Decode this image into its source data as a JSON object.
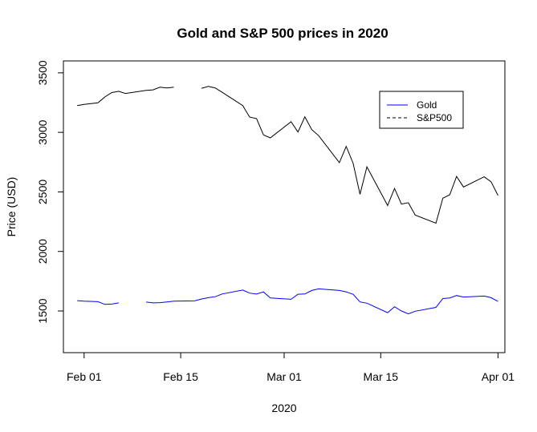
{
  "chart_data": {
    "type": "line",
    "title": "Gold and S&P 500 prices in 2020",
    "xlabel": "2020",
    "ylabel": "Price (USD)",
    "xlim": [
      "2020-01-29",
      "2020-04-02"
    ],
    "ylim": [
      1150,
      3600
    ],
    "x_ticks": [
      {
        "label": "Feb 01",
        "date": "2020-02-01"
      },
      {
        "label": "Feb 15",
        "date": "2020-02-15"
      },
      {
        "label": "Mar 01",
        "date": "2020-03-01"
      },
      {
        "label": "Mar 15",
        "date": "2020-03-15"
      },
      {
        "label": "Apr 01",
        "date": "2020-04-01"
      }
    ],
    "y_ticks": [
      1500,
      2000,
      2500,
      3000,
      3500
    ],
    "legend": {
      "position": "top-right",
      "entries": [
        {
          "name": "Gold",
          "color": "#0000ff",
          "style": "solid"
        },
        {
          "name": "S&P500",
          "color": "#000000",
          "style": "dashed"
        }
      ]
    },
    "series": [
      {
        "name": "S&P500",
        "color": "#000000",
        "points": [
          [
            "2020-01-31",
            3225
          ],
          [
            "2020-02-01",
            3235
          ],
          [
            "2020-02-03",
            3248
          ],
          [
            "2020-02-04",
            3297
          ],
          [
            "2020-02-05",
            3334
          ],
          [
            "2020-02-06",
            3345
          ],
          [
            "2020-02-07",
            3327
          ],
          [
            "2020-02-10",
            3352
          ],
          [
            "2020-02-11",
            3357
          ],
          [
            "2020-02-12",
            3379
          ],
          [
            "2020-02-13",
            3373
          ],
          [
            "2020-02-14",
            3380
          ],
          null,
          [
            "2020-02-18",
            3370
          ],
          [
            "2020-02-19",
            3386
          ],
          [
            "2020-02-20",
            3373
          ],
          [
            "2020-02-21",
            3337
          ],
          [
            "2020-02-24",
            3225
          ],
          [
            "2020-02-25",
            3128
          ],
          [
            "2020-02-26",
            3116
          ],
          [
            "2020-02-27",
            2979
          ],
          [
            "2020-02-28",
            2954
          ],
          [
            "2020-03-02",
            3090
          ],
          [
            "2020-03-03",
            3003
          ],
          [
            "2020-03-04",
            3130
          ],
          [
            "2020-03-05",
            3023
          ],
          [
            "2020-03-06",
            2972
          ],
          [
            "2020-03-09",
            2746
          ],
          [
            "2020-03-10",
            2882
          ],
          [
            "2020-03-11",
            2741
          ],
          [
            "2020-03-12",
            2480
          ],
          [
            "2020-03-13",
            2711
          ],
          [
            "2020-03-16",
            2386
          ],
          [
            "2020-03-17",
            2529
          ],
          [
            "2020-03-18",
            2398
          ],
          [
            "2020-03-19",
            2409
          ],
          [
            "2020-03-20",
            2305
          ],
          [
            "2020-03-23",
            2237
          ],
          [
            "2020-03-24",
            2447
          ],
          [
            "2020-03-25",
            2476
          ],
          [
            "2020-03-26",
            2630
          ],
          [
            "2020-03-27",
            2541
          ],
          [
            "2020-03-30",
            2627
          ],
          [
            "2020-03-31",
            2585
          ],
          [
            "2020-04-01",
            2470
          ]
        ]
      },
      {
        "name": "Gold",
        "color": "#0000ff",
        "points": [
          [
            "2020-01-31",
            1587
          ],
          [
            "2020-02-01",
            1583
          ],
          [
            "2020-02-03",
            1578
          ],
          [
            "2020-02-04",
            1555
          ],
          [
            "2020-02-05",
            1558
          ],
          [
            "2020-02-06",
            1568
          ],
          null,
          [
            "2020-02-10",
            1575
          ],
          [
            "2020-02-11",
            1568
          ],
          [
            "2020-02-12",
            1570
          ],
          [
            "2020-02-13",
            1576
          ],
          [
            "2020-02-14",
            1582
          ],
          [
            "2020-02-17",
            1585
          ],
          [
            "2020-02-18",
            1600
          ],
          [
            "2020-02-19",
            1612
          ],
          [
            "2020-02-20",
            1620
          ],
          [
            "2020-02-21",
            1643
          ],
          [
            "2020-02-24",
            1676
          ],
          [
            "2020-02-25",
            1650
          ],
          [
            "2020-02-26",
            1642
          ],
          [
            "2020-02-27",
            1660
          ],
          [
            "2020-02-28",
            1610
          ],
          [
            "2020-03-02",
            1598
          ],
          [
            "2020-03-03",
            1641
          ],
          [
            "2020-03-04",
            1643
          ],
          [
            "2020-03-05",
            1672
          ],
          [
            "2020-03-06",
            1686
          ],
          [
            "2020-03-09",
            1672
          ],
          [
            "2020-03-10",
            1660
          ],
          [
            "2020-03-11",
            1640
          ],
          [
            "2020-03-12",
            1576
          ],
          [
            "2020-03-13",
            1565
          ],
          [
            "2020-03-16",
            1486
          ],
          [
            "2020-03-17",
            1536
          ],
          [
            "2020-03-18",
            1500
          ],
          [
            "2020-03-19",
            1476
          ],
          [
            "2020-03-20",
            1498
          ],
          [
            "2020-03-23",
            1530
          ],
          [
            "2020-03-24",
            1604
          ],
          [
            "2020-03-25",
            1610
          ],
          [
            "2020-03-26",
            1630
          ],
          [
            "2020-03-27",
            1617
          ],
          [
            "2020-03-30",
            1625
          ],
          [
            "2020-03-31",
            1612
          ],
          [
            "2020-04-01",
            1580
          ]
        ]
      }
    ]
  }
}
